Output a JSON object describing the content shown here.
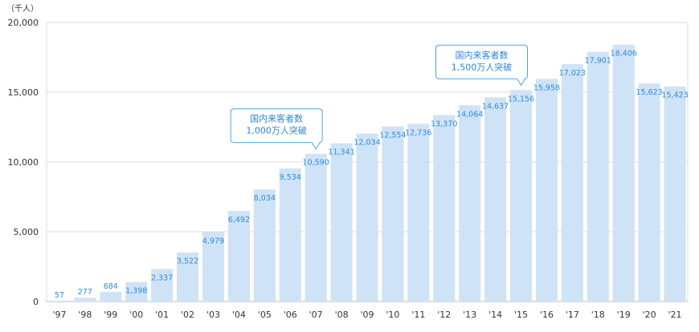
{
  "chart_data": {
    "type": "bar",
    "unit_label": "（千人）",
    "categories": [
      "'97",
      "'98",
      "'99",
      "'00",
      "'01",
      "'02",
      "'03",
      "'04",
      "'05",
      "'06",
      "'07",
      "'08",
      "'09",
      "'10",
      "'11",
      "'12",
      "'13",
      "'14",
      "'15",
      "'16",
      "'17",
      "'18",
      "'19",
      "'20",
      "'21"
    ],
    "values": [
      57,
      277,
      684,
      1398,
      2337,
      3522,
      4979,
      6492,
      8034,
      9534,
      10590,
      11341,
      12034,
      12554,
      12736,
      13370,
      14064,
      14637,
      15156,
      15958,
      17023,
      17901,
      18406,
      15623,
      15423
    ],
    "value_labels": [
      "57",
      "277",
      "684",
      "1,398",
      "2,337",
      "3,522",
      "4,979",
      "6,492",
      "8,034",
      "9,534",
      "10,590",
      "11,341",
      "12,034",
      "12,554",
      "12,736",
      "13,370",
      "14,064",
      "14,637",
      "15,156",
      "15,958",
      "17,023",
      "17,901",
      "18,406",
      "15,623",
      "15,423"
    ],
    "ylim": [
      0,
      20000
    ],
    "yticks": [
      0,
      5000,
      10000,
      15000,
      20000
    ],
    "ytick_labels": [
      "0",
      "5,000",
      "10,000",
      "15,000",
      "20,000"
    ],
    "grid": true,
    "annotations": [
      {
        "category": "'07",
        "lines": [
          "国内来客者数",
          "1,000万人突破"
        ]
      },
      {
        "category": "'15",
        "lines": [
          "国内来客者数",
          "1,500万人突破"
        ]
      }
    ],
    "colors": {
      "bar": "#cfe3f7",
      "value_label": "#2e8bd8",
      "axis_text": "#333333",
      "grid": "#dddddd",
      "callout_border": "#4aa3e0",
      "callout_text": "#2f86d1"
    }
  }
}
